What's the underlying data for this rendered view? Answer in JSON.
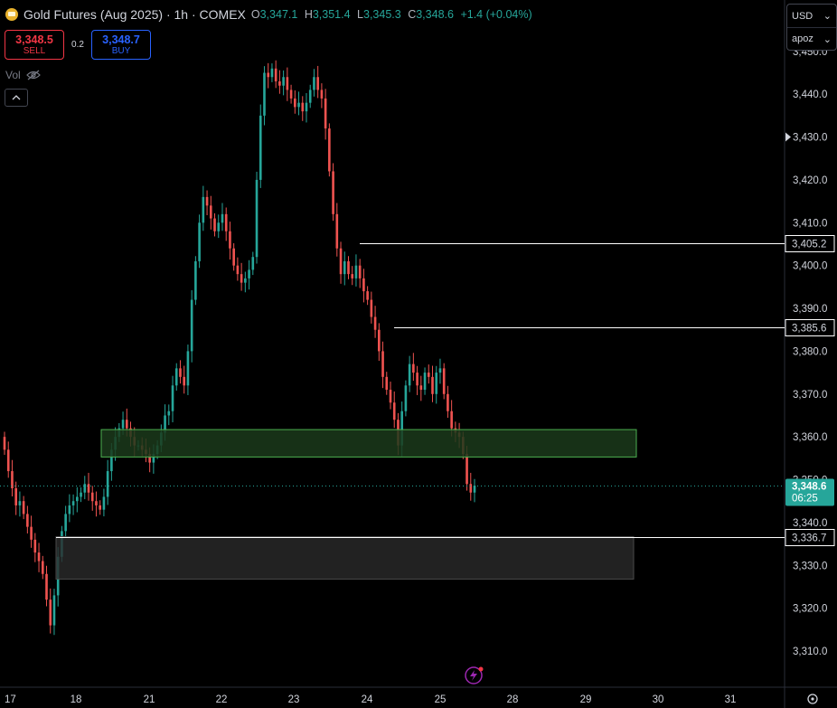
{
  "header": {
    "title": "Gold Futures (Aug 2025) · 1h · COMEX",
    "ohlc": [
      {
        "k": "O",
        "v": "3,347.1"
      },
      {
        "k": "H",
        "v": "3,351.4"
      },
      {
        "k": "L",
        "v": "3,345.3"
      },
      {
        "k": "C",
        "v": "3,348.6"
      }
    ],
    "change": "+1.4 (+0.04%)"
  },
  "trade": {
    "sell_price": "3,348.5",
    "sell_label": "SELL",
    "spread": "0.2",
    "buy_price": "3,348.7",
    "buy_label": "BUY"
  },
  "volume_label": "Vol",
  "currency": {
    "currency": "USD",
    "unit": "apoz"
  },
  "colors": {
    "up": "#26a69a",
    "down": "#ef5350",
    "background": "#000000",
    "zone_green": "#1b3a1b",
    "zone_green_border": "#4caf50",
    "zone_grey": "#2b2b2b",
    "price_tag": "#26a69a"
  },
  "chart_data": {
    "type": "candlestick",
    "ylim": [
      3305,
      3452
    ],
    "y_ticks": [
      "3,310.0",
      "3,320.0",
      "3,330.0",
      "3,340.0",
      "3,350.0",
      "3,360.0",
      "3,370.0",
      "3,380.0",
      "3,390.0",
      "3,400.0",
      "3,410.0",
      "3,420.0",
      "3,430.0",
      "3,440.0",
      "3,450.0"
    ],
    "x_ticks": [
      "17",
      "18",
      "21",
      "22",
      "23",
      "24",
      "25",
      "28",
      "29",
      "30",
      "31"
    ],
    "closes": [
      3357,
      3352,
      3348,
      3344,
      3345,
      3342,
      3339,
      3336,
      3333,
      3331,
      3328,
      3322,
      3316,
      3323,
      3332,
      3338,
      3342,
      3344,
      3345,
      3346,
      3347,
      3349,
      3347,
      3345,
      3344,
      3343,
      3346,
      3352,
      3357,
      3360,
      3362,
      3364,
      3362,
      3360,
      3358,
      3358,
      3357,
      3356,
      3354,
      3356,
      3358,
      3361,
      3365,
      3366,
      3372,
      3376,
      3374,
      3372,
      3380,
      3392,
      3401,
      3410,
      3416,
      3414,
      3411,
      3408,
      3410,
      3412,
      3408,
      3404,
      3400,
      3398,
      3396,
      3397,
      3399,
      3402,
      3420,
      3435,
      3445,
      3444,
      3446,
      3443,
      3442,
      3444,
      3441,
      3439,
      3437,
      3438,
      3436,
      3438,
      3441,
      3444,
      3441,
      3439,
      3432,
      3422,
      3412,
      3404,
      3398,
      3401,
      3398,
      3397,
      3400,
      3397,
      3394,
      3392,
      3388,
      3385,
      3380,
      3374,
      3371,
      3368,
      3364,
      3358,
      3366,
      3372,
      3377,
      3375,
      3372,
      3371,
      3375,
      3374,
      3370,
      3375,
      3376,
      3370,
      3366,
      3362,
      3361,
      3360,
      3356,
      3349,
      3347,
      3348.6
    ],
    "levels": [
      {
        "label": "3,405.2",
        "value": 3405.2,
        "from": 3405.2
      },
      {
        "label": "3,385.6",
        "value": 3385.6,
        "from": 3385.6
      },
      {
        "label": "3,336.7",
        "value": 3336.7,
        "from": 3336.7
      }
    ],
    "zones": [
      {
        "name": "green-zone",
        "top": 3361.7,
        "bottom": 3355.3
      },
      {
        "name": "grey-zone",
        "top": 3336.7,
        "bottom": 3326.8
      }
    ],
    "last_price": {
      "value": 3348.6,
      "label": "3,348.6",
      "countdown": "06:25"
    }
  }
}
